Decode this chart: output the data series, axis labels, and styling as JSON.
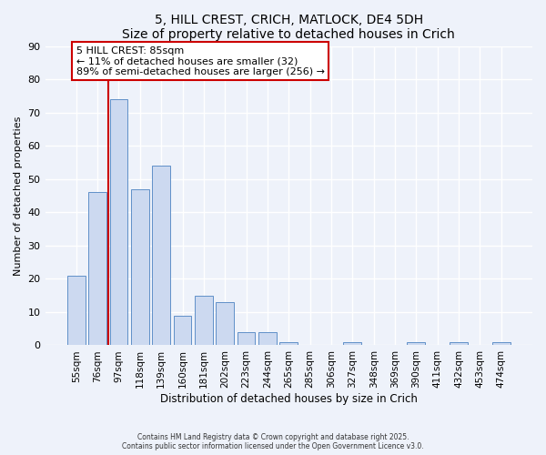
{
  "title1": "5, HILL CREST, CRICH, MATLOCK, DE4 5DH",
  "title2": "Size of property relative to detached houses in Crich",
  "xlabel": "Distribution of detached houses by size in Crich",
  "ylabel": "Number of detached properties",
  "bar_color": "#ccd9f0",
  "bar_edge_color": "#6090c8",
  "background_color": "#eef2fa",
  "grid_color": "#ffffff",
  "categories": [
    "55sqm",
    "76sqm",
    "97sqm",
    "118sqm",
    "139sqm",
    "160sqm",
    "181sqm",
    "202sqm",
    "223sqm",
    "244sqm",
    "265sqm",
    "285sqm",
    "306sqm",
    "327sqm",
    "348sqm",
    "369sqm",
    "390sqm",
    "411sqm",
    "432sqm",
    "453sqm",
    "474sqm"
  ],
  "values": [
    21,
    46,
    74,
    47,
    54,
    9,
    15,
    13,
    4,
    4,
    1,
    0,
    0,
    1,
    0,
    0,
    1,
    0,
    1,
    0,
    1
  ],
  "ylim": [
    0,
    90
  ],
  "yticks": [
    0,
    10,
    20,
    30,
    40,
    50,
    60,
    70,
    80,
    90
  ],
  "vline_color": "#cc0000",
  "annotation_title": "5 HILL CREST: 85sqm",
  "annotation_line1": "← 11% of detached houses are smaller (32)",
  "annotation_line2": "89% of semi-detached houses are larger (256) →",
  "annotation_box_color": "#ffffff",
  "annotation_box_edge": "#cc0000",
  "footer1": "Contains HM Land Registry data © Crown copyright and database right 2025.",
  "footer2": "Contains public sector information licensed under the Open Government Licence v3.0."
}
